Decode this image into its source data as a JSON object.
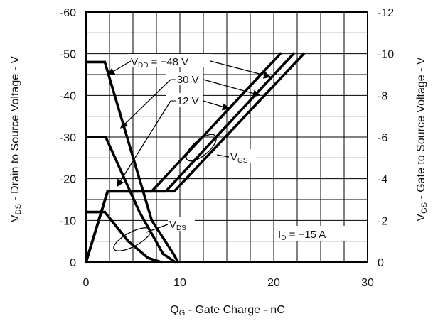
{
  "chart_data": {
    "type": "line",
    "xlabel": {
      "main": "Q",
      "sub": "G",
      "rest": " - Gate Charge - nC"
    },
    "ylabel_left": {
      "main": "V",
      "sub": "DS",
      "rest": " - Drain to Source Voltage - V"
    },
    "ylabel_right": {
      "main": "V",
      "sub": "GS",
      "rest": " - Gate to Source Voltage - V"
    },
    "xlim": [
      0,
      30
    ],
    "ylim_left": [
      0,
      -60
    ],
    "ylim_right": [
      0,
      -12
    ],
    "x_ticks": [
      "0",
      "10",
      "20",
      "30"
    ],
    "y_ticks_left": [
      "0",
      "-10",
      "-20",
      "-30",
      "-40",
      "-50",
      "-60"
    ],
    "y_ticks_right": [
      "0",
      "-2",
      "-4",
      "-6",
      "-8",
      "-10",
      "-12"
    ],
    "grid": true,
    "annotations": {
      "vdd_prefix_main": "V",
      "vdd_prefix_sub": "DD",
      "vdd_48": " = −48 V",
      "vdd_30": "−30 V",
      "vdd_12": "−12 V",
      "vgs_main": "V",
      "vgs_sub": "GS",
      "vds_main": "V",
      "vds_sub": "DS",
      "id_main": "I",
      "id_sub": "D",
      "id_rest": " = −15 A"
    },
    "series": [
      {
        "axis": "left",
        "vdd": -48,
        "x": [
          0,
          2.0,
          7.0,
          9.3,
          9.8
        ],
        "y": [
          -48,
          -48,
          -10,
          -2,
          0
        ]
      },
      {
        "axis": "left",
        "vdd": -30,
        "x": [
          0,
          2.1,
          5.7,
          8.2,
          9.5
        ],
        "y": [
          -30,
          -30,
          -12,
          -2,
          0
        ]
      },
      {
        "axis": "left",
        "vdd": -12,
        "x": [
          0,
          2.0,
          4.5,
          6.6,
          8.0
        ],
        "y": [
          -12,
          -12,
          -5,
          -1,
          0
        ]
      },
      {
        "axis": "right",
        "vdd": -12,
        "x": [
          0,
          2.3,
          7.0,
          20.7
        ],
        "y": [
          0,
          -3.4,
          -3.4,
          -10
        ]
      },
      {
        "axis": "right",
        "vdd": -30,
        "x": [
          0,
          2.3,
          8.5,
          22.1
        ],
        "y": [
          0,
          -3.4,
          -3.4,
          -10
        ]
      },
      {
        "axis": "right",
        "vdd": -48,
        "x": [
          0,
          2.3,
          9.4,
          23.2
        ],
        "y": [
          0,
          -3.4,
          -3.4,
          -10
        ]
      }
    ]
  }
}
